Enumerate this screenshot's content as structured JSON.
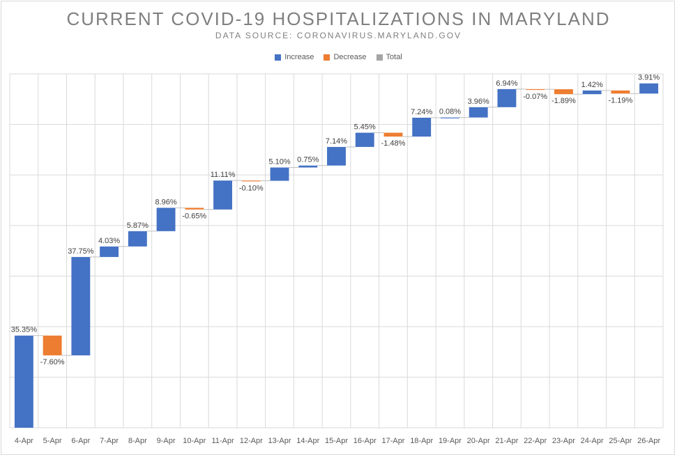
{
  "chart_data": {
    "type": "bar",
    "subtype": "waterfall",
    "title": "CURRENT COVID-19 HOSPITALIZATIONS IN MARYLAND",
    "subtitle": "DATA SOURCE: CORONAVIRUS.MARYLAND.GOV",
    "legend": [
      {
        "name": "Increase",
        "color": "#4472c4"
      },
      {
        "name": "Decrease",
        "color": "#ed7d31"
      },
      {
        "name": "Total",
        "color": "#a5a5a5"
      }
    ],
    "legend_position": "top-center",
    "grid": "major gridlines on both axes",
    "categories": [
      "4-Apr",
      "5-Apr",
      "6-Apr",
      "7-Apr",
      "8-Apr",
      "9-Apr",
      "10-Apr",
      "11-Apr",
      "12-Apr",
      "13-Apr",
      "14-Apr",
      "15-Apr",
      "16-Apr",
      "17-Apr",
      "18-Apr",
      "19-Apr",
      "20-Apr",
      "21-Apr",
      "22-Apr",
      "23-Apr",
      "24-Apr",
      "25-Apr",
      "26-Apr"
    ],
    "values": [
      35.35,
      -7.6,
      37.75,
      4.03,
      5.87,
      8.96,
      -0.65,
      11.11,
      -0.1,
      5.1,
      0.75,
      7.14,
      5.45,
      -1.48,
      7.24,
      0.08,
      3.96,
      6.94,
      -0.07,
      -1.89,
      1.42,
      -1.19,
      3.91
    ],
    "labels": [
      "35.35%",
      "-7.60%",
      "37.75%",
      "4.03%",
      "5.87%",
      "8.96%",
      "-0.65%",
      "11.11%",
      "-0.10%",
      "5.10%",
      "0.75%",
      "7.14%",
      "5.45%",
      "-1.48%",
      "7.24%",
      "0.08%",
      "3.96%",
      "6.94%",
      "-0.07%",
      "-1.89%",
      "1.42%",
      "-1.19%",
      "3.91%"
    ],
    "colors": {
      "increase": "#4472c4",
      "decrease": "#ed7d31",
      "total": "#a5a5a5",
      "grid": "#d9d9d9",
      "connector": "#bfbfbf"
    }
  }
}
